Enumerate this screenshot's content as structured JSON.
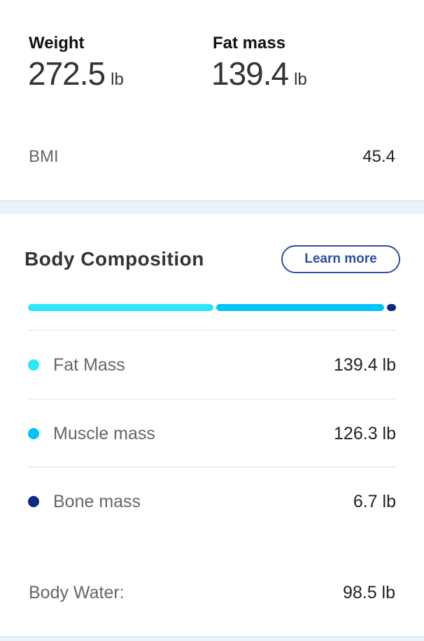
{
  "summary": {
    "weight": {
      "label": "Weight",
      "value": "272.5",
      "unit": "lb"
    },
    "fat_mass": {
      "label": "Fat mass",
      "value": "139.4",
      "unit": "lb"
    },
    "bmi": {
      "label": "BMI",
      "value": "45.4"
    }
  },
  "composition": {
    "title": "Body Composition",
    "learn_more": "Learn more",
    "items": [
      {
        "label": "Fat Mass",
        "value": "139.4 lb",
        "amount": 139.4,
        "color": "#2ce5f6"
      },
      {
        "label": "Muscle mass",
        "value": "126.3 lb",
        "amount": 126.3,
        "color": "#00c4f7"
      },
      {
        "label": "Bone mass",
        "value": "6.7 lb",
        "amount": 6.7,
        "color": "#0b2a7f"
      }
    ],
    "body_water": {
      "label": "Body Water:",
      "value": "98.5 lb"
    }
  }
}
